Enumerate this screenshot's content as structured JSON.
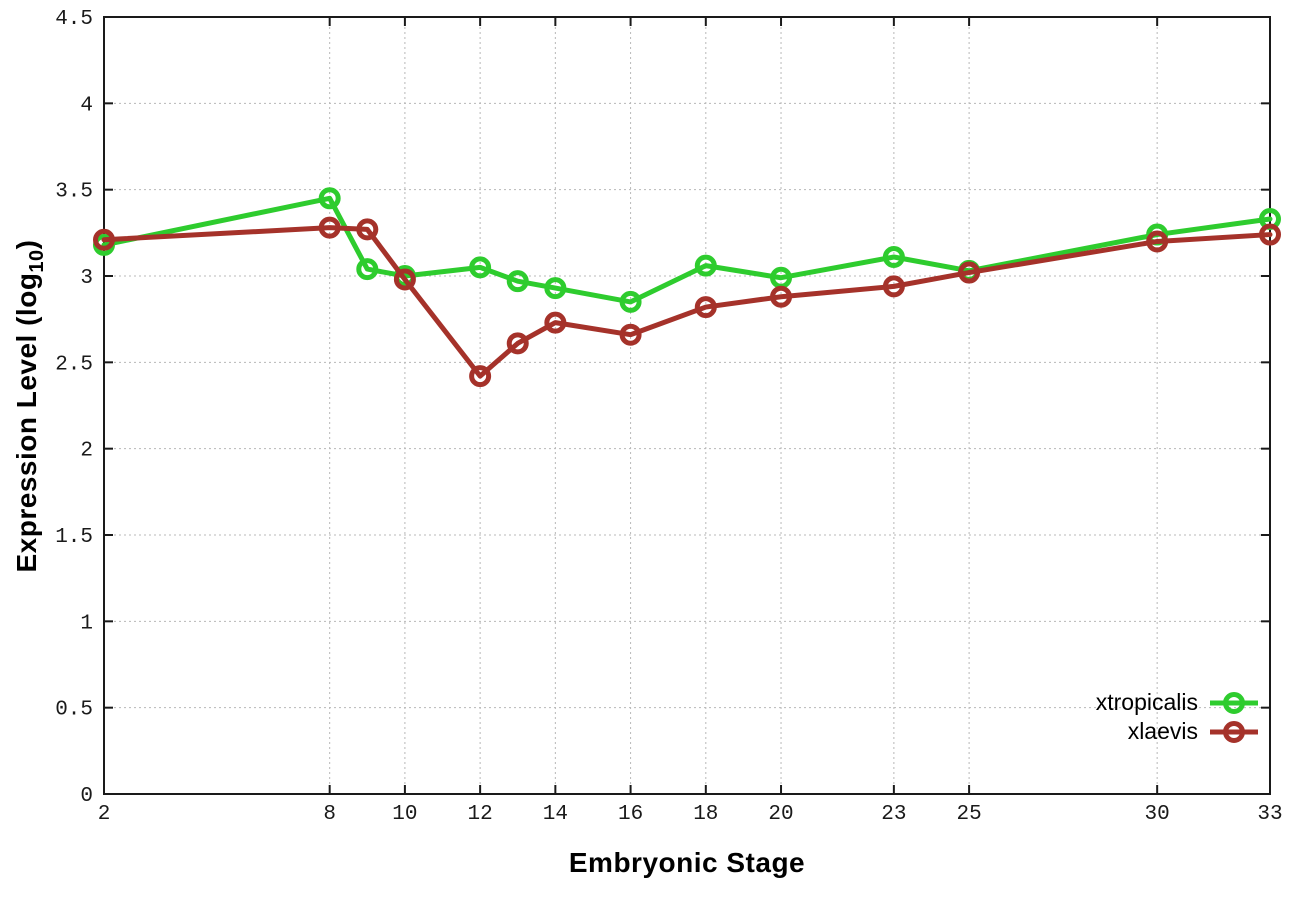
{
  "chart_data": {
    "type": "line",
    "title": "",
    "xlabel": "Embryonic Stage",
    "ylabel_main": "Expression Level (log",
    "ylabel_sub": "10",
    "ylabel_close": ")",
    "x": [
      2,
      8,
      9,
      10,
      12,
      13,
      14,
      16,
      18,
      20,
      23,
      25,
      30,
      33
    ],
    "series": [
      {
        "name": "xtropicalis",
        "color": "#2ecc2e",
        "values": [
          3.18,
          3.45,
          3.04,
          3.0,
          3.05,
          2.97,
          2.93,
          2.85,
          3.06,
          2.99,
          3.11,
          3.03,
          3.24,
          3.33
        ]
      },
      {
        "name": "xlaevis",
        "color": "#a5322a",
        "values": [
          3.21,
          3.28,
          3.27,
          2.98,
          2.42,
          2.61,
          2.73,
          2.66,
          2.82,
          2.88,
          2.94,
          3.02,
          3.2,
          3.24
        ]
      }
    ],
    "xlim": [
      2,
      33
    ],
    "ylim": [
      0,
      4.5
    ],
    "x_ticks": [
      2,
      8,
      10,
      12,
      14,
      16,
      18,
      20,
      23,
      25,
      30,
      33
    ],
    "y_ticks": [
      0,
      0.5,
      1,
      1.5,
      2,
      2.5,
      3,
      3.5,
      4,
      4.5
    ],
    "grid": true,
    "legend_position": "bottom-right-inside",
    "colors": {
      "grid": "#b8b8b8",
      "axis": "#1a1a1a",
      "text": "#1a1a1a"
    }
  }
}
